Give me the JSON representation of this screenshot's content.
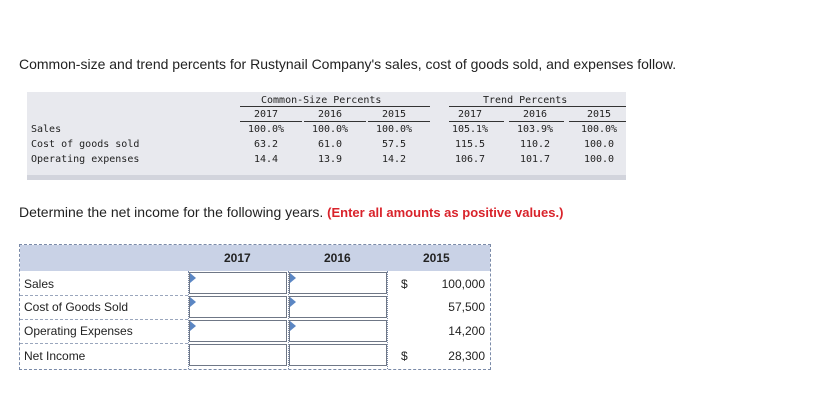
{
  "intro": "Common-size and trend percents for Rustynail Company's sales, cost of goods sold, and expenses follow.",
  "data_table": {
    "group_common": "Common-Size Percents",
    "group_trend": "Trend Percents",
    "years": [
      "2017",
      "2016",
      "2015"
    ],
    "rows": [
      {
        "label": "Sales",
        "common": [
          "100.0%",
          "100.0%",
          "100.0%"
        ],
        "trend": [
          "105.1%",
          "103.9%",
          "100.0%"
        ]
      },
      {
        "label": "Cost of goods sold",
        "common": [
          "63.2",
          "61.0",
          "57.5"
        ],
        "trend": [
          "115.5",
          "110.2",
          "100.0"
        ]
      },
      {
        "label": "Operating expenses",
        "common": [
          "14.4",
          "13.9",
          "14.2"
        ],
        "trend": [
          "106.7",
          "101.7",
          "100.0"
        ]
      }
    ]
  },
  "instruction": {
    "text": "Determine the net income for the following years.",
    "emphasis": "(Enter all amounts as positive values.)"
  },
  "answer_grid": {
    "columns": [
      "2017",
      "2016",
      "2015"
    ],
    "rows": [
      {
        "label": "Sales",
        "currency": "$",
        "value_2015": "100,000"
      },
      {
        "label": "Cost of Goods Sold",
        "currency": "",
        "value_2015": "57,500"
      },
      {
        "label": "Operating Expenses",
        "currency": "",
        "value_2015": "14,200"
      },
      {
        "label": "Net Income",
        "currency": "$",
        "value_2015": "28,300"
      }
    ]
  },
  "colors": {
    "table_bg": "#e8e9ee",
    "grid_header": "#c9d2e6",
    "emphasis_red": "#d9232b",
    "input_flag": "#5b86c3"
  }
}
